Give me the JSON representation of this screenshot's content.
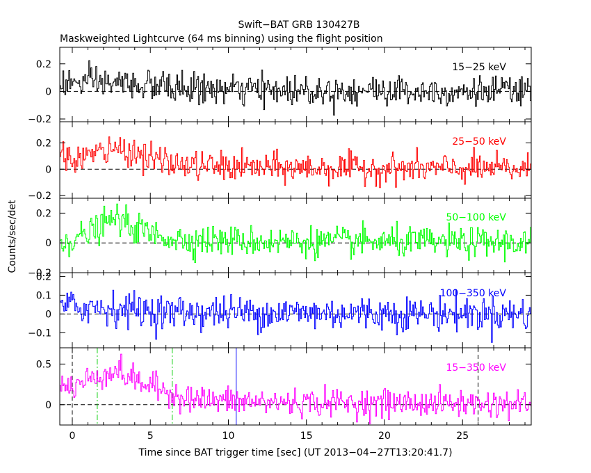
{
  "chart_data": {
    "type": "line",
    "title": "Swift−BAT GRB 130427B",
    "subtitle": "Maskweighted Lightcurve (64 ms binning) using the flight position",
    "xlabel": "Time since BAT trigger time [sec] (UT 2013−04−27T13:20:41.7)",
    "ylabel": "Counts/sec/det",
    "xlim": [
      -0.8,
      29.4
    ],
    "x_ticks": [
      0,
      5,
      10,
      15,
      20,
      25
    ],
    "x_tick_labels": [
      "0",
      "5",
      "10",
      "15",
      "20",
      "25"
    ],
    "bin_width_s": 0.064,
    "markers": [
      {
        "name": "trigger-start",
        "x": 0.0,
        "color": "#000000",
        "style": "dashed"
      },
      {
        "name": "t90-start",
        "x": 1.6,
        "color": "#00cc00",
        "style": "dash-dot"
      },
      {
        "name": "t90-end",
        "x": 6.4,
        "color": "#00cc00",
        "style": "dash-dot"
      },
      {
        "name": "trigger-marker",
        "x": 10.5,
        "color": "#0000ff",
        "style": "solid"
      },
      {
        "name": "window-end",
        "x": 26.0,
        "color": "#000000",
        "style": "dashed"
      }
    ],
    "panels": [
      {
        "band": "15−25 keV",
        "color": "#000000",
        "ylim": [
          -0.22,
          0.32
        ],
        "y_ticks": [
          -0.2,
          0,
          0.2
        ],
        "y_tick_labels": [
          "−0.2",
          "0",
          "0.2"
        ],
        "noise": 0.055,
        "profile": [
          [
            0,
            0.06
          ],
          [
            3,
            0.06
          ],
          [
            6,
            0.03
          ],
          [
            10,
            0.01
          ],
          [
            29.4,
            0.0
          ]
        ],
        "show_markers": false
      },
      {
        "band": "25−50 keV",
        "color": "#ff0000",
        "ylim": [
          -0.22,
          0.36
        ],
        "y_ticks": [
          -0.2,
          0,
          0.2
        ],
        "y_tick_labels": [
          "−0.2",
          "0",
          "0.2"
        ],
        "noise": 0.055,
        "profile": [
          [
            0,
            0.08
          ],
          [
            2.5,
            0.14
          ],
          [
            3.2,
            0.16
          ],
          [
            5,
            0.08
          ],
          [
            7,
            0.03
          ],
          [
            12,
            0.01
          ],
          [
            29.4,
            0.0
          ]
        ],
        "show_markers": false
      },
      {
        "band": "50−100 keV",
        "color": "#00ff00",
        "ylim": [
          -0.2,
          0.3
        ],
        "y_ticks": [
          -0.2,
          0,
          0.2
        ],
        "y_tick_labels": [
          "−0.2",
          "0",
          "0.2"
        ],
        "noise": 0.05,
        "profile": [
          [
            0,
            0.02
          ],
          [
            1,
            0.06
          ],
          [
            2.8,
            0.17
          ],
          [
            3.5,
            0.12
          ],
          [
            5,
            0.06
          ],
          [
            7,
            0.02
          ],
          [
            12,
            0.01
          ],
          [
            29.4,
            0.0
          ]
        ],
        "show_markers": false
      },
      {
        "band": "100−350 keV",
        "color": "#0000ff",
        "ylim": [
          -0.18,
          0.22
        ],
        "y_ticks": [
          -0.1,
          0,
          0.1,
          0.2
        ],
        "y_tick_labels": [
          "−0.1",
          "0",
          "0.1",
          "0.2"
        ],
        "noise": 0.045,
        "profile": [
          [
            0,
            0.04
          ],
          [
            3,
            0.03
          ],
          [
            6,
            0.01
          ],
          [
            29.4,
            0.0
          ]
        ],
        "show_markers": false
      },
      {
        "band": "15−350 keV",
        "color": "#ff00ff",
        "ylim": [
          -0.25,
          0.7
        ],
        "y_ticks": [
          0,
          0.5
        ],
        "y_tick_labels": [
          "0",
          "0.5"
        ],
        "noise": 0.085,
        "profile": [
          [
            0,
            0.22
          ],
          [
            1.5,
            0.35
          ],
          [
            2.8,
            0.42
          ],
          [
            4,
            0.3
          ],
          [
            6,
            0.16
          ],
          [
            8,
            0.06
          ],
          [
            12,
            0.03
          ],
          [
            29.4,
            0.01
          ]
        ],
        "show_markers": true
      }
    ]
  }
}
